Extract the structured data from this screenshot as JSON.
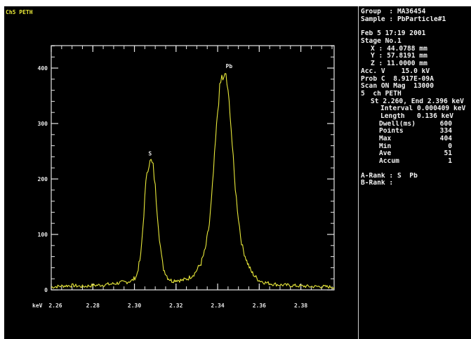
{
  "channel_label": "Ch5 PETH",
  "info": {
    "group": "Group  : MA36454",
    "sample": "Sample : PbParticle#1",
    "date": "Feb 5 17:19 2001",
    "stage": "Stage No.1",
    "x": "X : 44.0788 mm",
    "y": "Y : 57.8191 mm",
    "z": "Z : 11.0000 mm",
    "acc_v": "Acc. V    15.0 kV",
    "prob_c": "Prob C  8.917E-09A",
    "scan": "Scan ON Mag  13000",
    "ch": "5  ch PETH",
    "st_end": "St 2.260, End 2.396 keV",
    "interval": "Interval 0.000409 keV",
    "length": "Length   0.136 keV",
    "stats": [
      {
        "key": "Dwell(ms)",
        "value": "600"
      },
      {
        "key": "Points",
        "value": "334"
      },
      {
        "key": "Max",
        "value": "404"
      },
      {
        "key": "Min",
        "value": "0"
      },
      {
        "key": "Ave",
        "value": "51"
      },
      {
        "key": "Accum",
        "value": "1"
      }
    ],
    "a_rank": "A-Rank : S  Pb",
    "b_rank": "B-Rank :"
  },
  "chart_data": {
    "type": "line",
    "x_unit_label": "keV",
    "x_ticks": [
      "2.26",
      "2.28",
      "2.30",
      "2.32",
      "2.34",
      "2.36",
      "2.38"
    ],
    "y_ticks": [
      "0",
      "100",
      "200",
      "300",
      "400"
    ],
    "xlim": [
      2.26,
      2.396
    ],
    "ylim": [
      0,
      440
    ],
    "peaks": [
      {
        "label": "S",
        "x": 2.3075,
        "y": 232
      },
      {
        "label": "Pb",
        "x": 2.3455,
        "y": 390
      }
    ],
    "x": [
      2.26,
      2.265,
      2.27,
      2.275,
      2.28,
      2.285,
      2.29,
      2.293,
      2.296,
      2.299,
      2.301,
      2.303,
      2.304,
      2.305,
      2.306,
      2.307,
      2.308,
      2.309,
      2.31,
      2.311,
      2.312,
      2.313,
      2.314,
      2.316,
      2.318,
      2.32,
      2.323,
      2.326,
      2.329,
      2.332,
      2.334,
      2.336,
      2.337,
      2.338,
      2.339,
      2.34,
      2.341,
      2.342,
      2.343,
      2.344,
      2.345,
      2.346,
      2.347,
      2.348,
      2.349,
      2.35,
      2.351,
      2.352,
      2.354,
      2.356,
      2.358,
      2.36,
      2.363,
      2.366,
      2.37,
      2.375,
      2.38,
      2.385,
      2.39,
      2.396
    ],
    "y": [
      5,
      7,
      8,
      6,
      8,
      9,
      11,
      13,
      14,
      17,
      25,
      60,
      110,
      165,
      215,
      228,
      232,
      222,
      185,
      140,
      95,
      60,
      38,
      22,
      16,
      18,
      17,
      21,
      30,
      48,
      72,
      118,
      160,
      212,
      268,
      322,
      362,
      384,
      378,
      390,
      352,
      322,
      262,
      206,
      165,
      130,
      98,
      76,
      52,
      34,
      24,
      17,
      13,
      11,
      9,
      8,
      7,
      6,
      6,
      5
    ]
  }
}
